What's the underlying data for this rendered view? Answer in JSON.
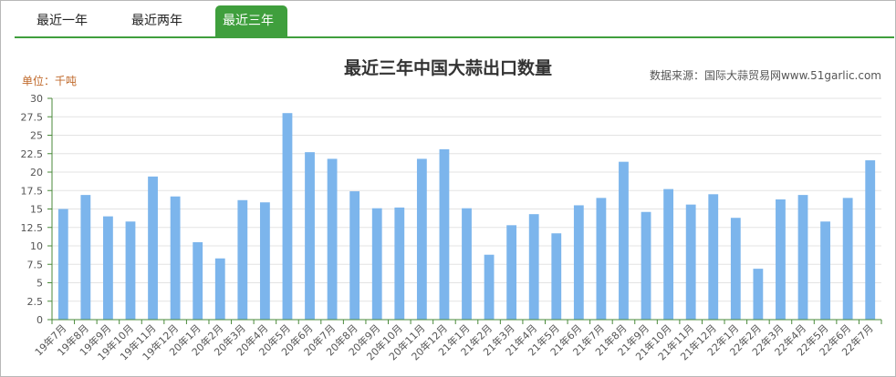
{
  "tabs": [
    {
      "label": "最近一年"
    },
    {
      "label": "最近两年"
    },
    {
      "label": "最近三年"
    }
  ],
  "colors": {
    "accent": "#3f9f3d",
    "bar": "#7cb5ec",
    "axis": "#4a8a3a"
  },
  "chart_data": {
    "type": "bar",
    "title": "最近三年中国大蒜出口数量",
    "unit_label": "单位：千吨",
    "source": "数据来源：国际大蒜贸易网www.51garlic.com",
    "ylim": [
      0,
      30
    ],
    "yticks": [
      "0",
      "2.5",
      "5",
      "7.5",
      "10",
      "12.5",
      "15",
      "17.5",
      "20",
      "22.5",
      "25",
      "27.5",
      "30"
    ],
    "grid": true,
    "categories": [
      "19年7月",
      "19年8月",
      "19年9月",
      "19年10月",
      "19年11月",
      "19年12月",
      "20年1月",
      "20年2月",
      "20年3月",
      "20年4月",
      "20年5月",
      "20年6月",
      "20年7月",
      "20年8月",
      "20年9月",
      "20年10月",
      "20年11月",
      "20年12月",
      "21年1月",
      "21年2月",
      "21年3月",
      "21年4月",
      "21年5月",
      "21年6月",
      "21年7月",
      "21年8月",
      "21年9月",
      "21年10月",
      "21年11月",
      "21年12月",
      "22年1月",
      "22年2月",
      "22年3月",
      "22年4月",
      "22年5月",
      "22年6月",
      "22年7月"
    ],
    "values": [
      15.0,
      16.9,
      14.0,
      13.3,
      19.4,
      16.7,
      10.5,
      8.3,
      16.2,
      15.9,
      28.0,
      22.7,
      21.8,
      17.4,
      15.1,
      15.2,
      21.8,
      23.1,
      15.1,
      8.8,
      12.8,
      14.3,
      11.7,
      15.5,
      16.5,
      21.4,
      14.6,
      17.7,
      15.6,
      17.0,
      13.8,
      6.9,
      16.3,
      16.9,
      13.3,
      16.5,
      21.6
    ]
  }
}
